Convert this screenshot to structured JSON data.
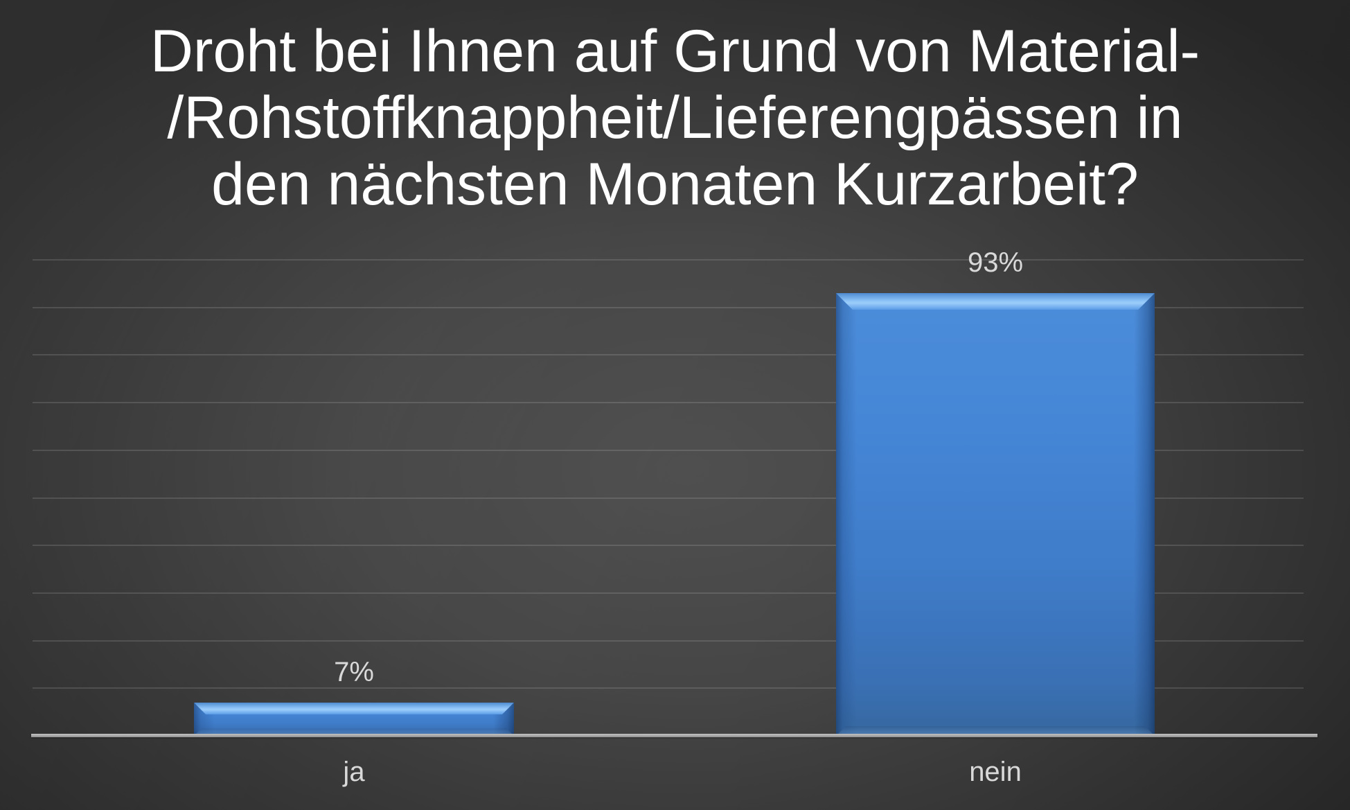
{
  "slide": {
    "title_lines": [
      "Droht bei Ihnen auf Grund von Material-",
      "/Rohstoffknappheit/Lieferengpässen in",
      "den nächsten Monaten Kurzarbeit?"
    ]
  },
  "chart_data": {
    "type": "bar",
    "title": "Droht bei Ihnen auf Grund von Material-/Rohstoffknappheit/Lieferengpässen in den nächsten Monaten Kurzarbeit?",
    "categories": [
      "ja",
      "nein"
    ],
    "values": [
      7,
      93
    ],
    "data_labels": [
      "7%",
      "93%"
    ],
    "unit": "%",
    "xlabel": "",
    "ylabel": "",
    "ylim": [
      0,
      100
    ],
    "gridline_interval": 10,
    "grid": true,
    "legend": false,
    "y_axis_tick_labels_visible": false,
    "colors": {
      "bar_fill": "#4182d2",
      "bar_highlight": "#93c8fa",
      "bar_edge_shadow": "#2e5f9e",
      "data_label_text": "#d9d9d9",
      "category_label_text": "#d9d9d9",
      "title_text": "#ffffff",
      "axis_line": "#a8a8a8",
      "gridline": "#555555",
      "background_center": "#4d4d4d",
      "background_edge": "#272727"
    }
  }
}
